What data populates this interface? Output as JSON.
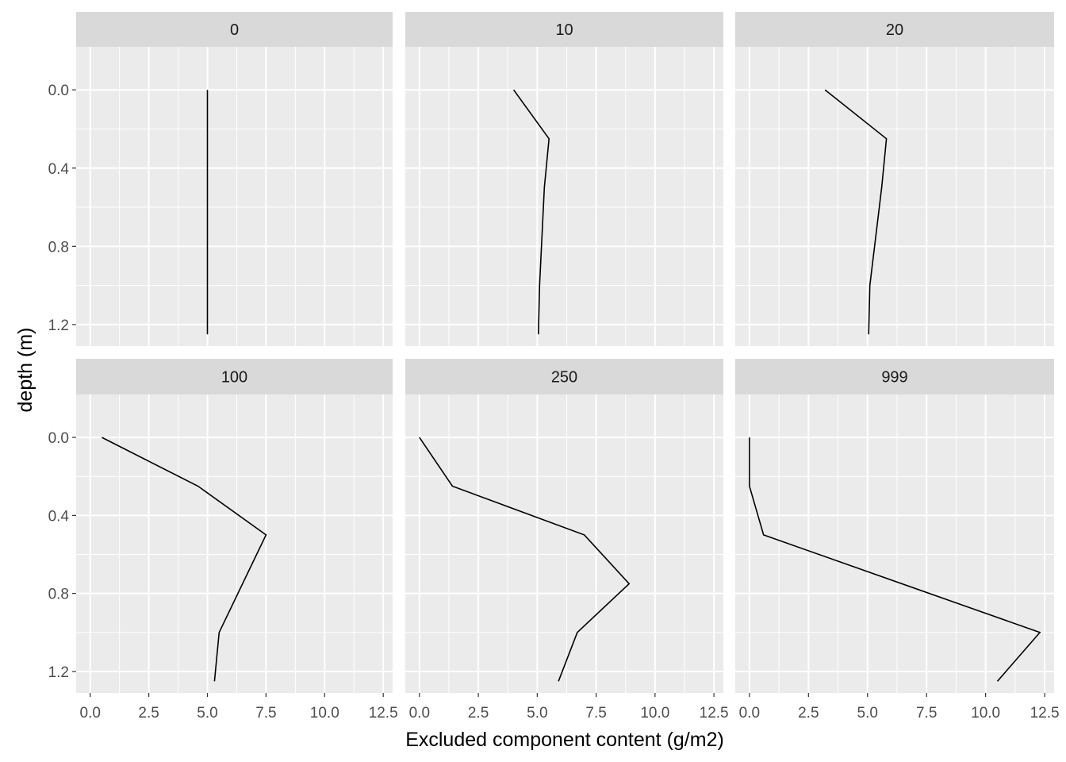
{
  "chart_data": {
    "type": "line",
    "facets": [
      {
        "label": "0",
        "x": [
          5.0,
          5.0,
          5.0,
          5.0,
          5.0
        ],
        "y": [
          0.0,
          0.25,
          0.5,
          1.0,
          1.25
        ]
      },
      {
        "label": "10",
        "x": [
          4.0,
          5.5,
          5.3,
          5.1,
          5.05
        ],
        "y": [
          0.0,
          0.25,
          0.5,
          1.0,
          1.25
        ]
      },
      {
        "label": "20",
        "x": [
          3.2,
          5.8,
          5.6,
          5.1,
          5.05
        ],
        "y": [
          0.0,
          0.25,
          0.5,
          1.0,
          1.25
        ]
      },
      {
        "label": "100",
        "x": [
          0.5,
          4.6,
          7.5,
          5.5,
          5.3
        ],
        "y": [
          0.0,
          0.25,
          0.5,
          1.0,
          1.25
        ]
      },
      {
        "label": "250",
        "x": [
          0.0,
          1.4,
          7.0,
          8.9,
          6.7,
          5.9
        ],
        "y": [
          0.0,
          0.25,
          0.5,
          0.75,
          1.0,
          1.25
        ]
      },
      {
        "label": "999",
        "x": [
          0.0,
          0.0,
          0.6,
          12.3,
          10.5
        ],
        "y": [
          0.0,
          0.25,
          0.5,
          1.0,
          1.25
        ]
      }
    ],
    "xlabel": "Excluded component content (g/m2)",
    "ylabel": "depth (m)",
    "xlim": [
      -0.6,
      12.9
    ],
    "ylim": [
      -0.22,
      1.31
    ],
    "y_reversed": true,
    "x_ticks": [
      0.0,
      2.5,
      5.0,
      7.5,
      10.0,
      12.5
    ],
    "x_tick_labels": [
      "0.0",
      "2.5",
      "5.0",
      "7.5",
      "10.0",
      "12.5"
    ],
    "y_ticks": [
      0.0,
      0.4,
      0.8,
      1.2
    ],
    "y_tick_labels": [
      "0.0",
      "0.4",
      "0.8",
      "1.2"
    ],
    "grid": true,
    "colors": {
      "panel_bg": "#EBEBEB",
      "strip_bg": "#D9D9D9",
      "grid": "#FFFFFF",
      "line": "#000000",
      "tick": "#333333"
    }
  }
}
